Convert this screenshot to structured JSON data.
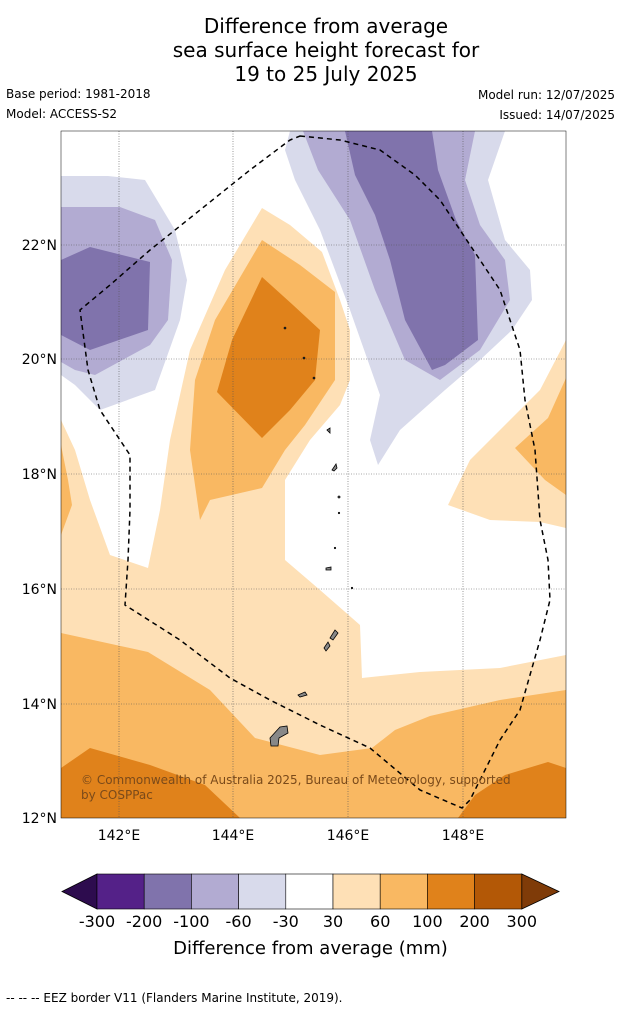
{
  "title_lines": [
    "Difference from average",
    "sea surface height forecast for",
    "19 to 25 July 2025"
  ],
  "meta": {
    "base_period": "Base period: 1981-2018",
    "model": "Model: ACCESS-S2",
    "model_run": "Model run: 12/07/2025",
    "issued": "Issued: 14/07/2025"
  },
  "map": {
    "lat_labels": [
      "22°N",
      "20°N",
      "18°N",
      "16°N",
      "14°N",
      "12°N"
    ],
    "lon_labels": [
      "142°E",
      "144°E",
      "146°E",
      "148°E"
    ],
    "copyright": [
      "© Commonwealth of Australia 2025, Bureau of Meteorology, supported",
      "by COSPPac"
    ],
    "eez_line": "dashed"
  },
  "colorbar": {
    "title": "Difference from average (mm)",
    "tick_labels": [
      "-300",
      "-200",
      "-100",
      "-60",
      "-30",
      "30",
      "60",
      "100",
      "200",
      "300"
    ],
    "colors": [
      "#2d0c4e",
      "#542188",
      "#8073ac",
      "#b2abd2",
      "#d8daeb",
      "#ffffff",
      "#fee0b6",
      "#f9b862",
      "#e0821b",
      "#b35806",
      "#7f3b08"
    ]
  },
  "footer": "--  --  -- EEZ border V11 (Flanders Marine Institute, 2019)."
}
